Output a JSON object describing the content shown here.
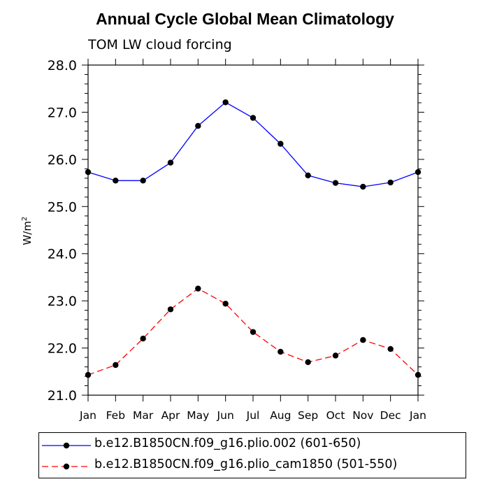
{
  "chart_data": {
    "type": "line",
    "title": "Annual Cycle Global Mean Climatology",
    "subtitle": "TOM LW cloud forcing",
    "ylabel": "W/m",
    "ylabel_superscript": "2",
    "xlabel": "",
    "categories": [
      "Jan",
      "Feb",
      "Mar",
      "Apr",
      "May",
      "Jun",
      "Jul",
      "Aug",
      "Sep",
      "Oct",
      "Nov",
      "Dec",
      "Jan"
    ],
    "ylim": [
      21.0,
      28.0
    ],
    "yticks": [
      "21.0",
      "22.0",
      "23.0",
      "24.0",
      "25.0",
      "26.0",
      "27.0",
      "28.0"
    ],
    "series": [
      {
        "name": "b.e12.B1850CN.f09_g16.plio.002 (601-650)",
        "color": "#0000ff",
        "dash": "solid",
        "values": [
          25.73,
          25.55,
          25.55,
          25.93,
          26.71,
          27.21,
          26.88,
          26.33,
          25.66,
          25.5,
          25.42,
          25.51,
          25.73
        ]
      },
      {
        "name": "b.e12.B1850CN.f09_g16.plio_cam1850 (501-550)",
        "color": "#ff0000",
        "dash": "dashed",
        "values": [
          21.43,
          21.64,
          22.2,
          22.82,
          23.26,
          22.94,
          22.34,
          21.92,
          21.7,
          21.84,
          22.17,
          21.98,
          21.43
        ]
      }
    ],
    "grid": false,
    "legend_position": "bottom"
  }
}
